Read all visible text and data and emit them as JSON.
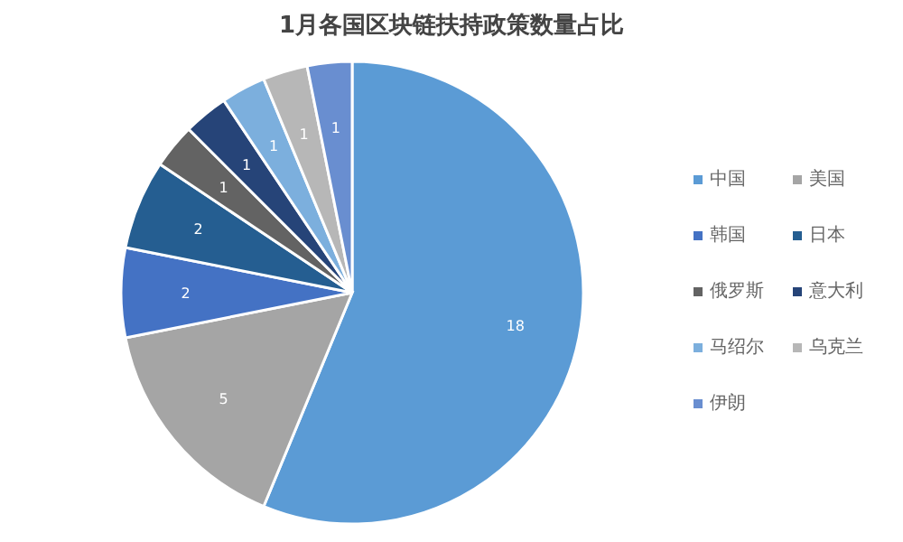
{
  "chart_data": {
    "type": "pie",
    "title": "1月各国区块链扶持政策数量占比",
    "categories": [
      "中国",
      "美国",
      "韩国",
      "日本",
      "俄罗斯",
      "意大利",
      "马绍尔",
      "乌克兰",
      "伊朗"
    ],
    "values": [
      18,
      5,
      2,
      2,
      1,
      1,
      1,
      1,
      1
    ],
    "colors": [
      "#5b9bd5",
      "#a5a5a5",
      "#4472c4",
      "#255e91",
      "#636363",
      "#264478",
      "#7cafdd",
      "#b7b7b7",
      "#698ed0"
    ],
    "data_labels": true,
    "legend": "right"
  }
}
